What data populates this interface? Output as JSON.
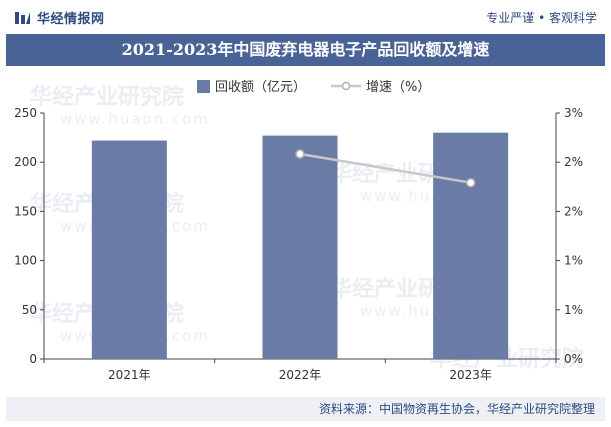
{
  "header": {
    "brand": "华经情报网",
    "tagline": "专业严谨 • 客观科学"
  },
  "colors": {
    "title_band": "#4a6396",
    "bar": "#6a7ba6",
    "line": "#c8c8c8",
    "brand": "#2f4a80"
  },
  "watermark": {
    "text": "华经产业研究院",
    "url": "www.huaon.com"
  },
  "source": "资料来源：中国物资再生协会，华经产业研究院整理",
  "chart_data": {
    "type": "bar",
    "title": "2021-2023年中国废弃电器电子产品回收额及增速",
    "categories": [
      "2021年",
      "2022年",
      "2023年"
    ],
    "series": [
      {
        "name": "回收额（亿元）",
        "type": "bar",
        "axis": "left",
        "values": [
          222,
          227,
          230
        ]
      },
      {
        "name": "增速（%）",
        "type": "line",
        "axis": "right",
        "values": [
          null,
          2.5,
          2.15
        ]
      }
    ],
    "y_left": {
      "min": 0,
      "max": 250,
      "ticks": [
        "0",
        "50",
        "100",
        "150",
        "200",
        "250"
      ]
    },
    "y_right": {
      "min": 0,
      "max": 3,
      "ticks": [
        "0%",
        "1%",
        "1%",
        "2%",
        "2%",
        "3%"
      ]
    },
    "legend_position": "top-center",
    "grid": false
  }
}
